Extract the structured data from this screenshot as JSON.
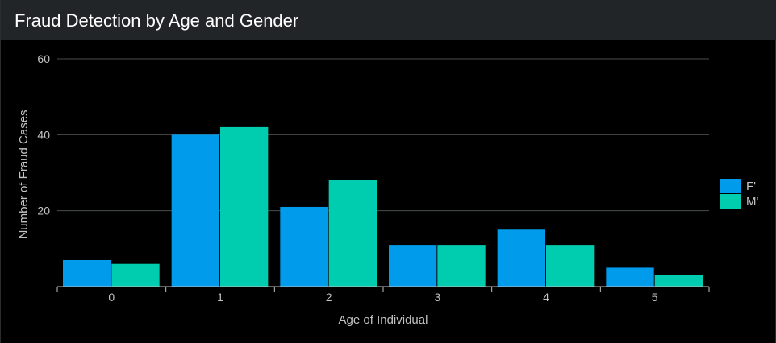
{
  "panel": {
    "title": "Fraud Detection by Age and Gender"
  },
  "colors": {
    "background": "#000000",
    "header": "#212527",
    "title_text": "#ffffff",
    "grid": "#4a4d50",
    "axis_text": "#c3c3c3",
    "f_series": "#009ceb",
    "m_series": "#00cdaf"
  },
  "chart_data": {
    "type": "bar",
    "title": "Fraud Detection by Age and Gender",
    "xlabel": "Age of Individual",
    "ylabel": "Number of Fraud Cases",
    "categories": [
      "0",
      "1",
      "2",
      "3",
      "4",
      "5"
    ],
    "series": [
      {
        "name": "F'",
        "color": "#009ceb",
        "values": [
          7,
          40,
          21,
          11,
          15,
          5
        ]
      },
      {
        "name": "M'",
        "color": "#00cdaf",
        "values": [
          6,
          42,
          28,
          11,
          11,
          3
        ]
      }
    ],
    "ylim": [
      0,
      60
    ],
    "yticks": [
      20,
      40,
      60
    ],
    "grid": true,
    "legend": "right"
  }
}
